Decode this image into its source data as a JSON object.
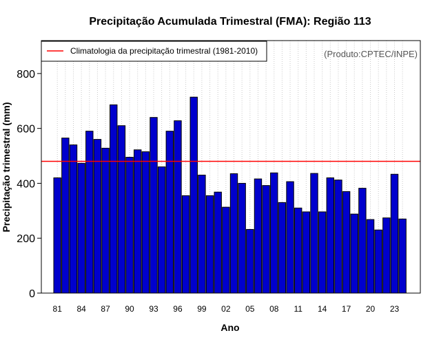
{
  "chart_data": {
    "type": "bar",
    "title": "Precipitação Acumulada Trimestral (FMA): Região 113",
    "xlabel": "Ano",
    "ylabel": "Precipitação trimestral (mm)",
    "ylim": [
      0,
      920
    ],
    "yticks": [
      0,
      200,
      400,
      600,
      800
    ],
    "categories": [
      "81",
      "82",
      "83",
      "84",
      "85",
      "86",
      "87",
      "88",
      "89",
      "90",
      "91",
      "92",
      "93",
      "94",
      "95",
      "96",
      "97",
      "98",
      "99",
      "00",
      "01",
      "02",
      "03",
      "04",
      "05",
      "06",
      "07",
      "08",
      "09",
      "10",
      "11",
      "12",
      "13",
      "14",
      "15",
      "16",
      "17",
      "18",
      "19",
      "20",
      "21",
      "22",
      "23",
      "24"
    ],
    "xtick_labels": [
      "81",
      "84",
      "87",
      "90",
      "93",
      "96",
      "99",
      "02",
      "05",
      "08",
      "11",
      "14",
      "17",
      "20",
      "23"
    ],
    "values": [
      420,
      565,
      540,
      473,
      590,
      560,
      528,
      686,
      610,
      495,
      522,
      515,
      640,
      460,
      590,
      628,
      355,
      714,
      430,
      355,
      368,
      313,
      435,
      400,
      232,
      416,
      392,
      438,
      330,
      406,
      310,
      296,
      436,
      296,
      420,
      412,
      370,
      288,
      382,
      268,
      230,
      274,
      433,
      270
    ],
    "bar_color": "#0000CD",
    "climatology": {
      "value": 480,
      "color": "#FF0000",
      "label": "Climatologia da precipitação trimestral (1981-2010)"
    },
    "legend_position": "top-left",
    "grid": "vertical dotted",
    "credit": "(Produto:CPTEC/INPE)"
  }
}
